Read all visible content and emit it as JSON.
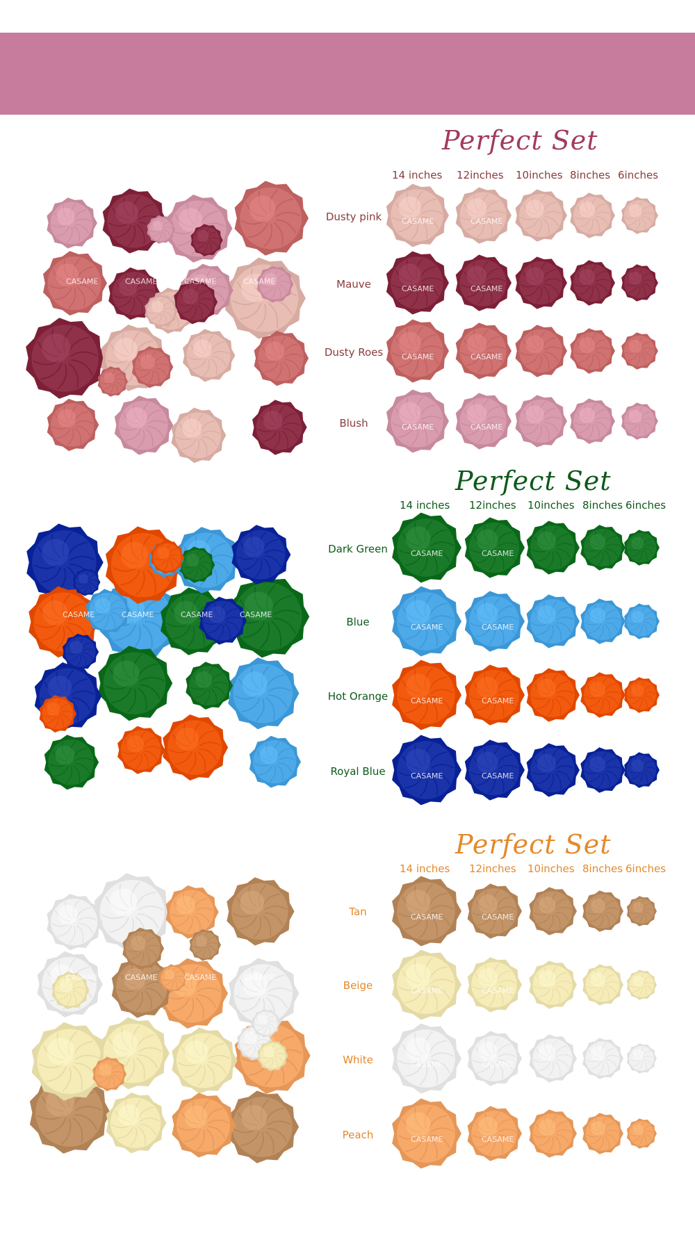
{
  "banner_color": "#c77b9d",
  "watermark": "CASAME",
  "sections": [
    {
      "title": "Perfect Set",
      "title_color": "#a23a5e",
      "label_color": "#8a3b3b",
      "sizes": [
        "14 inches",
        "12inches",
        "10inches",
        "8inches",
        "6inches"
      ],
      "rows": [
        {
          "name": "Dusty pink",
          "color": "#e8bdb4"
        },
        {
          "name": "Mauve",
          "color": "#8e3149"
        },
        {
          "name": "Dusty Roes",
          "color": "#cf7271"
        },
        {
          "name": "Blush",
          "color": "#d99bae"
        }
      ]
    },
    {
      "title": "Perfect Set",
      "title_color": "#0d5a1a",
      "label_color": "#0d5a1a",
      "sizes": [
        "14 inches",
        "12inches",
        "10inches",
        "8inches",
        "6inches"
      ],
      "rows": [
        {
          "name": "Dark Green",
          "color": "#1b7a2a"
        },
        {
          "name": "Blue",
          "color": "#4da9e8"
        },
        {
          "name": "Hot Orange",
          "color": "#f25a0e"
        },
        {
          "name": "Royal Blue",
          "color": "#1a33a8"
        }
      ]
    },
    {
      "title": "Perfect Set",
      "title_color": "#e5892a",
      "label_color": "#e5892a",
      "sizes": [
        "14 inches",
        "12inches",
        "10inches",
        "8inches",
        "6inches"
      ],
      "rows": [
        {
          "name": "Tan",
          "color": "#c39468"
        },
        {
          "name": "Beige",
          "color": "#f6ecb8"
        },
        {
          "name": "White",
          "color": "#f2f2f2"
        },
        {
          "name": "Peach",
          "color": "#f7a96a"
        }
      ]
    }
  ]
}
